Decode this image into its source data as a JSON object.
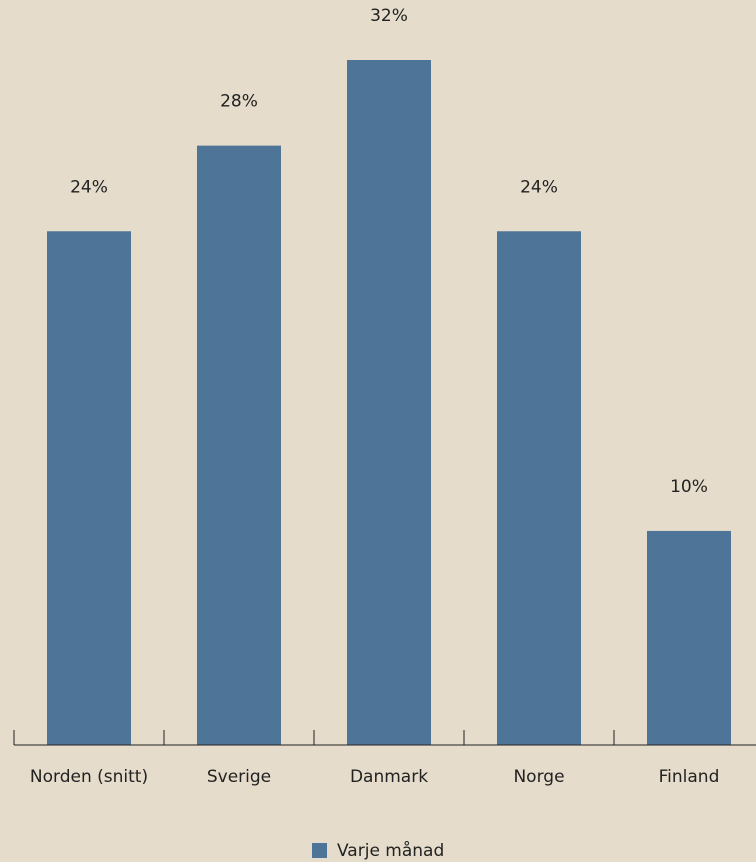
{
  "chart_data": {
    "type": "bar",
    "categories": [
      "Norden (snitt)",
      "Sverige",
      "Danmark",
      "Norge",
      "Finland"
    ],
    "series": [
      {
        "name": "Varje månad",
        "color": "#4e7598",
        "values": [
          24,
          28,
          32,
          24,
          10
        ],
        "value_labels": [
          "24%",
          "28%",
          "32%",
          "24%",
          "10%"
        ]
      }
    ],
    "legend": "bottom"
  }
}
